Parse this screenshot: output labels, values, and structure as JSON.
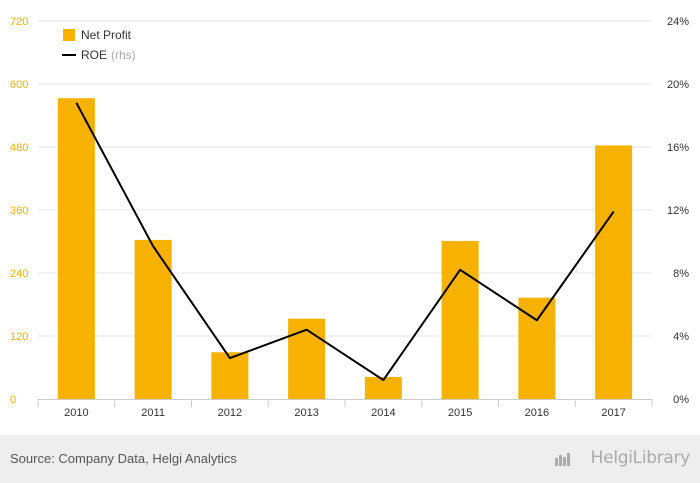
{
  "chart_data": {
    "type": "bar",
    "categories": [
      "2010",
      "2011",
      "2012",
      "2013",
      "2014",
      "2015",
      "2016",
      "2017"
    ],
    "series": [
      {
        "name": "Net Profit",
        "kind": "bar",
        "axis": "left",
        "values": [
          573,
          303,
          89,
          153,
          42,
          301,
          193,
          483
        ],
        "color": "#f7b100"
      },
      {
        "name": "ROE",
        "kind": "line",
        "axis": "right",
        "values": [
          0.188,
          0.097,
          0.026,
          0.044,
          0.012,
          0.082,
          0.05,
          0.119
        ],
        "color": "#000000"
      }
    ],
    "legend": {
      "items": [
        {
          "label": "Net Profit",
          "suffix": ""
        },
        {
          "label": "ROE",
          "suffix": "(rhs)"
        }
      ],
      "position": "top-left"
    },
    "y_left": {
      "ylim": [
        0,
        720
      ],
      "ticks": [
        "0",
        "120",
        "240",
        "360",
        "480",
        "600",
        "720"
      ],
      "tick_color": "#f7b100"
    },
    "y_right": {
      "ylim": [
        0,
        0.24
      ],
      "ticks": [
        "0%",
        "4%",
        "8%",
        "12%",
        "16%",
        "20%",
        "24%"
      ]
    },
    "grid": true
  },
  "footer": {
    "source": "Source: Company Data, Helgi Analytics",
    "brand": "HelgiLibrary"
  }
}
